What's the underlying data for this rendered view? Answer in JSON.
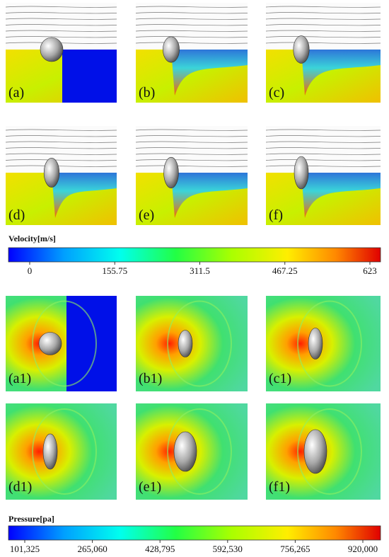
{
  "velocity_panels": [
    {
      "label": "(a)"
    },
    {
      "label": "(b)"
    },
    {
      "label": "(c)"
    },
    {
      "label": "(d)"
    },
    {
      "label": "(e)"
    },
    {
      "label": "(f)"
    }
  ],
  "velocity_colorbar": {
    "title": "Velocity[m/s]",
    "range": [
      0,
      623
    ],
    "ticks": [
      0,
      155.75,
      311.5,
      467.25,
      623
    ]
  },
  "pressure_panels": [
    {
      "label": "(a1)"
    },
    {
      "label": "(b1)"
    },
    {
      "label": "(c1)"
    },
    {
      "label": "(d1)"
    },
    {
      "label": "(e1)"
    },
    {
      "label": "(f1)"
    }
  ],
  "pressure_colorbar": {
    "title": "Pressure[pa]",
    "range": [
      101325,
      920000
    ],
    "ticks": [
      {
        "value": 101325,
        "label": "101,325"
      },
      {
        "value": 265060,
        "label": "265,060"
      },
      {
        "value": 428795,
        "label": "428,795"
      },
      {
        "value": 592530,
        "label": "592,530"
      },
      {
        "value": 756265,
        "label": "756,265"
      },
      {
        "value": 920000,
        "label": "920,000"
      }
    ]
  }
}
